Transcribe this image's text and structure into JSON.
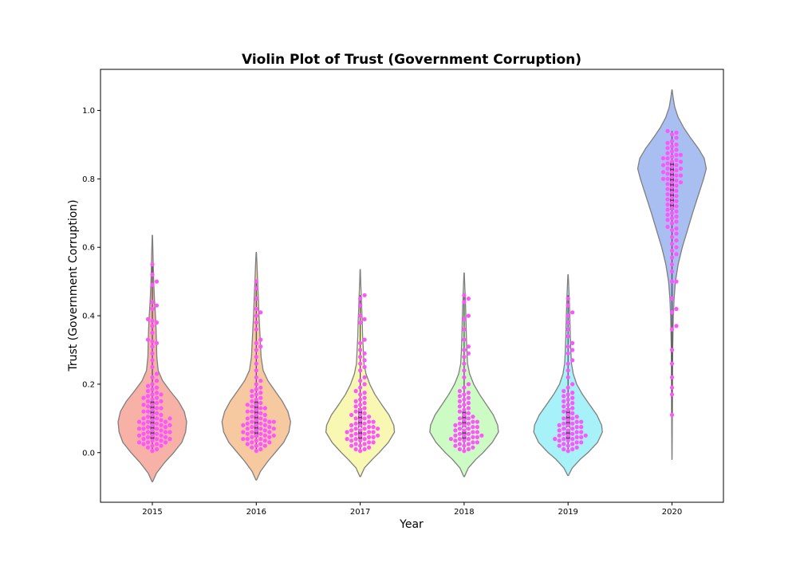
{
  "chart_data": {
    "type": "violin",
    "title": "Violin Plot of Trust (Government Corruption)",
    "xlabel": "Year",
    "ylabel": "Trust (Government Corruption)",
    "categories": [
      "2015",
      "2016",
      "2017",
      "2018",
      "2019",
      "2020"
    ],
    "ylim": [
      -0.145,
      1.12
    ],
    "yticks": [
      "0.0",
      "0.2",
      "0.4",
      "0.6",
      "0.8",
      "1.0"
    ],
    "grid": false,
    "colors": {
      "violins": [
        "#f7b1a7",
        "#f7c9a1",
        "#f9f8b3",
        "#cdfbc4",
        "#a6f2f8",
        "#a9bff1"
      ],
      "violin_edge": "#7f7f7f",
      "points": "#ff55ff"
    },
    "violins": [
      {
        "year": "2015",
        "range": [
          -0.085,
          0.635
        ],
        "density": [
          [
            -0.085,
            0.01
          ],
          [
            -0.06,
            0.12
          ],
          [
            -0.03,
            0.35
          ],
          [
            0.0,
            0.62
          ],
          [
            0.03,
            0.86
          ],
          [
            0.06,
            0.97
          ],
          [
            0.09,
            1.0
          ],
          [
            0.12,
            0.93
          ],
          [
            0.15,
            0.76
          ],
          [
            0.18,
            0.52
          ],
          [
            0.21,
            0.3
          ],
          [
            0.24,
            0.17
          ],
          [
            0.28,
            0.13
          ],
          [
            0.32,
            0.12
          ],
          [
            0.36,
            0.11
          ],
          [
            0.4,
            0.09
          ],
          [
            0.45,
            0.06
          ],
          [
            0.5,
            0.04
          ],
          [
            0.55,
            0.025
          ],
          [
            0.6,
            0.015
          ],
          [
            0.635,
            0.005
          ]
        ]
      },
      {
        "year": "2016",
        "range": [
          -0.08,
          0.585
        ],
        "density": [
          [
            -0.08,
            0.01
          ],
          [
            -0.055,
            0.12
          ],
          [
            -0.025,
            0.34
          ],
          [
            0.0,
            0.55
          ],
          [
            0.03,
            0.8
          ],
          [
            0.06,
            0.95
          ],
          [
            0.09,
            1.0
          ],
          [
            0.12,
            0.92
          ],
          [
            0.15,
            0.76
          ],
          [
            0.18,
            0.55
          ],
          [
            0.21,
            0.34
          ],
          [
            0.24,
            0.2
          ],
          [
            0.28,
            0.14
          ],
          [
            0.32,
            0.12
          ],
          [
            0.36,
            0.1
          ],
          [
            0.4,
            0.08
          ],
          [
            0.45,
            0.06
          ],
          [
            0.5,
            0.04
          ],
          [
            0.55,
            0.02
          ],
          [
            0.585,
            0.005
          ]
        ]
      },
      {
        "year": "2017",
        "range": [
          -0.07,
          0.535
        ],
        "density": [
          [
            -0.07,
            0.01
          ],
          [
            -0.045,
            0.12
          ],
          [
            -0.02,
            0.35
          ],
          [
            0.0,
            0.55
          ],
          [
            0.03,
            0.82
          ],
          [
            0.06,
            1.0
          ],
          [
            0.08,
            0.98
          ],
          [
            0.11,
            0.84
          ],
          [
            0.14,
            0.63
          ],
          [
            0.17,
            0.43
          ],
          [
            0.2,
            0.28
          ],
          [
            0.23,
            0.17
          ],
          [
            0.26,
            0.11
          ],
          [
            0.3,
            0.09
          ],
          [
            0.34,
            0.07
          ],
          [
            0.38,
            0.06
          ],
          [
            0.42,
            0.045
          ],
          [
            0.46,
            0.03
          ],
          [
            0.5,
            0.015
          ],
          [
            0.535,
            0.005
          ]
        ]
      },
      {
        "year": "2018",
        "range": [
          -0.07,
          0.525
        ],
        "density": [
          [
            -0.07,
            0.01
          ],
          [
            -0.045,
            0.12
          ],
          [
            -0.02,
            0.34
          ],
          [
            0.0,
            0.55
          ],
          [
            0.03,
            0.82
          ],
          [
            0.06,
            1.0
          ],
          [
            0.08,
            0.98
          ],
          [
            0.11,
            0.85
          ],
          [
            0.14,
            0.65
          ],
          [
            0.17,
            0.45
          ],
          [
            0.2,
            0.28
          ],
          [
            0.23,
            0.16
          ],
          [
            0.26,
            0.1
          ],
          [
            0.3,
            0.08
          ],
          [
            0.34,
            0.065
          ],
          [
            0.38,
            0.055
          ],
          [
            0.42,
            0.045
          ],
          [
            0.46,
            0.03
          ],
          [
            0.5,
            0.015
          ],
          [
            0.525,
            0.005
          ]
        ]
      },
      {
        "year": "2019",
        "range": [
          -0.067,
          0.52
        ],
        "density": [
          [
            -0.067,
            0.01
          ],
          [
            -0.045,
            0.12
          ],
          [
            -0.02,
            0.35
          ],
          [
            0.0,
            0.58
          ],
          [
            0.03,
            0.86
          ],
          [
            0.06,
            1.0
          ],
          [
            0.08,
            0.98
          ],
          [
            0.11,
            0.84
          ],
          [
            0.14,
            0.63
          ],
          [
            0.17,
            0.42
          ],
          [
            0.2,
            0.25
          ],
          [
            0.23,
            0.15
          ],
          [
            0.26,
            0.1
          ],
          [
            0.3,
            0.08
          ],
          [
            0.34,
            0.065
          ],
          [
            0.38,
            0.055
          ],
          [
            0.42,
            0.045
          ],
          [
            0.46,
            0.03
          ],
          [
            0.5,
            0.015
          ],
          [
            0.52,
            0.005
          ]
        ]
      },
      {
        "year": "2020",
        "range": [
          -0.02,
          1.06
        ],
        "density": [
          [
            -0.02,
            0.003
          ],
          [
            0.05,
            0.006
          ],
          [
            0.1,
            0.01
          ],
          [
            0.2,
            0.015
          ],
          [
            0.3,
            0.022
          ],
          [
            0.4,
            0.04
          ],
          [
            0.45,
            0.06
          ],
          [
            0.5,
            0.1
          ],
          [
            0.55,
            0.18
          ],
          [
            0.6,
            0.3
          ],
          [
            0.65,
            0.45
          ],
          [
            0.7,
            0.6
          ],
          [
            0.75,
            0.76
          ],
          [
            0.8,
            0.92
          ],
          [
            0.83,
            1.0
          ],
          [
            0.86,
            0.94
          ],
          [
            0.89,
            0.76
          ],
          [
            0.92,
            0.54
          ],
          [
            0.95,
            0.34
          ],
          [
            0.98,
            0.18
          ],
          [
            1.01,
            0.08
          ],
          [
            1.04,
            0.03
          ],
          [
            1.06,
            0.005
          ]
        ]
      }
    ],
    "quartiles": [
      {
        "year": "2015",
        "q1": 0.04,
        "median": 0.08,
        "q3": 0.15,
        "whisker": [
          0.0,
          0.55
        ]
      },
      {
        "year": "2016",
        "q1": 0.045,
        "median": 0.08,
        "q3": 0.15,
        "whisker": [
          0.0,
          0.5
        ]
      },
      {
        "year": "2017",
        "q1": 0.04,
        "median": 0.07,
        "q3": 0.13,
        "whisker": [
          0.0,
          0.46
        ]
      },
      {
        "year": "2018",
        "q1": 0.04,
        "median": 0.07,
        "q3": 0.12,
        "whisker": [
          0.0,
          0.46
        ]
      },
      {
        "year": "2019",
        "q1": 0.04,
        "median": 0.07,
        "q3": 0.13,
        "whisker": [
          0.0,
          0.46
        ]
      },
      {
        "year": "2020",
        "q1": 0.71,
        "median": 0.79,
        "q3": 0.85,
        "whisker": [
          0.11,
          0.94
        ]
      }
    ],
    "points": {
      "2015": [
        0.005,
        0.01,
        0.015,
        0.02,
        0.02,
        0.025,
        0.025,
        0.03,
        0.03,
        0.03,
        0.035,
        0.035,
        0.04,
        0.04,
        0.04,
        0.045,
        0.045,
        0.05,
        0.05,
        0.05,
        0.055,
        0.055,
        0.06,
        0.06,
        0.06,
        0.065,
        0.065,
        0.07,
        0.07,
        0.07,
        0.075,
        0.075,
        0.08,
        0.08,
        0.08,
        0.085,
        0.085,
        0.09,
        0.09,
        0.09,
        0.095,
        0.095,
        0.1,
        0.1,
        0.1,
        0.105,
        0.11,
        0.11,
        0.115,
        0.12,
        0.12,
        0.125,
        0.13,
        0.13,
        0.135,
        0.14,
        0.14,
        0.145,
        0.15,
        0.15,
        0.155,
        0.16,
        0.16,
        0.165,
        0.17,
        0.17,
        0.175,
        0.18,
        0.185,
        0.19,
        0.195,
        0.2,
        0.21,
        0.22,
        0.23,
        0.25,
        0.27,
        0.29,
        0.31,
        0.32,
        0.325,
        0.33,
        0.35,
        0.37,
        0.38,
        0.385,
        0.39,
        0.42,
        0.43,
        0.44,
        0.49,
        0.5,
        0.52,
        0.55
      ],
      "2016": [
        0.005,
        0.01,
        0.015,
        0.02,
        0.02,
        0.025,
        0.025,
        0.03,
        0.03,
        0.035,
        0.035,
        0.04,
        0.04,
        0.04,
        0.045,
        0.045,
        0.05,
        0.05,
        0.05,
        0.055,
        0.055,
        0.06,
        0.06,
        0.06,
        0.065,
        0.065,
        0.07,
        0.07,
        0.07,
        0.075,
        0.075,
        0.08,
        0.08,
        0.08,
        0.085,
        0.085,
        0.09,
        0.09,
        0.09,
        0.095,
        0.095,
        0.1,
        0.1,
        0.105,
        0.11,
        0.11,
        0.115,
        0.12,
        0.12,
        0.125,
        0.13,
        0.13,
        0.135,
        0.14,
        0.14,
        0.145,
        0.15,
        0.155,
        0.16,
        0.165,
        0.17,
        0.175,
        0.18,
        0.185,
        0.19,
        0.2,
        0.21,
        0.22,
        0.24,
        0.26,
        0.28,
        0.3,
        0.31,
        0.32,
        0.33,
        0.36,
        0.38,
        0.4,
        0.41,
        0.42,
        0.45,
        0.48,
        0.5
      ],
      "2017": [
        0.005,
        0.01,
        0.01,
        0.015,
        0.02,
        0.02,
        0.025,
        0.025,
        0.03,
        0.03,
        0.035,
        0.035,
        0.04,
        0.04,
        0.04,
        0.045,
        0.045,
        0.05,
        0.05,
        0.05,
        0.055,
        0.055,
        0.06,
        0.06,
        0.06,
        0.065,
        0.065,
        0.07,
        0.07,
        0.07,
        0.075,
        0.075,
        0.08,
        0.08,
        0.085,
        0.085,
        0.09,
        0.09,
        0.095,
        0.1,
        0.1,
        0.105,
        0.11,
        0.11,
        0.115,
        0.12,
        0.125,
        0.13,
        0.135,
        0.14,
        0.145,
        0.15,
        0.155,
        0.16,
        0.17,
        0.175,
        0.18,
        0.19,
        0.2,
        0.21,
        0.22,
        0.24,
        0.25,
        0.26,
        0.27,
        0.28,
        0.29,
        0.3,
        0.32,
        0.33,
        0.38,
        0.39,
        0.4,
        0.43,
        0.45,
        0.46
      ],
      "2018": [
        0.005,
        0.01,
        0.01,
        0.015,
        0.02,
        0.02,
        0.025,
        0.025,
        0.03,
        0.03,
        0.035,
        0.035,
        0.04,
        0.04,
        0.04,
        0.045,
        0.045,
        0.05,
        0.05,
        0.05,
        0.055,
        0.055,
        0.06,
        0.06,
        0.065,
        0.065,
        0.07,
        0.07,
        0.075,
        0.075,
        0.08,
        0.08,
        0.085,
        0.085,
        0.09,
        0.09,
        0.095,
        0.1,
        0.1,
        0.105,
        0.11,
        0.115,
        0.12,
        0.125,
        0.13,
        0.135,
        0.14,
        0.145,
        0.15,
        0.155,
        0.16,
        0.165,
        0.17,
        0.175,
        0.18,
        0.19,
        0.2,
        0.22,
        0.24,
        0.26,
        0.28,
        0.29,
        0.3,
        0.31,
        0.33,
        0.36,
        0.39,
        0.4,
        0.44,
        0.45,
        0.46
      ],
      "2019": [
        0.005,
        0.01,
        0.01,
        0.015,
        0.02,
        0.02,
        0.025,
        0.025,
        0.03,
        0.03,
        0.035,
        0.035,
        0.04,
        0.04,
        0.04,
        0.045,
        0.045,
        0.05,
        0.05,
        0.05,
        0.055,
        0.055,
        0.06,
        0.06,
        0.065,
        0.065,
        0.07,
        0.07,
        0.075,
        0.075,
        0.08,
        0.08,
        0.085,
        0.085,
        0.09,
        0.09,
        0.095,
        0.1,
        0.1,
        0.105,
        0.11,
        0.115,
        0.12,
        0.125,
        0.13,
        0.135,
        0.14,
        0.145,
        0.15,
        0.155,
        0.16,
        0.165,
        0.17,
        0.175,
        0.18,
        0.19,
        0.2,
        0.22,
        0.24,
        0.26,
        0.27,
        0.29,
        0.3,
        0.31,
        0.32,
        0.34,
        0.36,
        0.38,
        0.4,
        0.41,
        0.43,
        0.45
      ],
      "2020": [
        0.11,
        0.17,
        0.19,
        0.22,
        0.26,
        0.3,
        0.36,
        0.37,
        0.41,
        0.42,
        0.45,
        0.5,
        0.5,
        0.53,
        0.55,
        0.57,
        0.58,
        0.59,
        0.6,
        0.61,
        0.62,
        0.63,
        0.64,
        0.65,
        0.655,
        0.66,
        0.67,
        0.675,
        0.68,
        0.685,
        0.69,
        0.695,
        0.7,
        0.705,
        0.71,
        0.715,
        0.72,
        0.725,
        0.73,
        0.735,
        0.74,
        0.745,
        0.75,
        0.755,
        0.76,
        0.765,
        0.77,
        0.775,
        0.78,
        0.785,
        0.79,
        0.79,
        0.795,
        0.8,
        0.8,
        0.805,
        0.81,
        0.81,
        0.815,
        0.82,
        0.82,
        0.825,
        0.83,
        0.83,
        0.835,
        0.84,
        0.84,
        0.845,
        0.85,
        0.85,
        0.855,
        0.86,
        0.86,
        0.865,
        0.87,
        0.87,
        0.875,
        0.88,
        0.885,
        0.89,
        0.895,
        0.9,
        0.905,
        0.91,
        0.92,
        0.93,
        0.935,
        0.94
      ]
    }
  }
}
